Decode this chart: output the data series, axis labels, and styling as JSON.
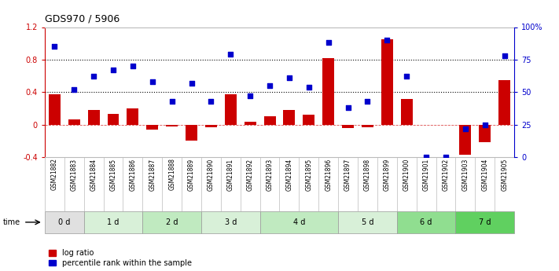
{
  "title": "GDS970 / 5906",
  "samples": [
    "GSM21882",
    "GSM21883",
    "GSM21884",
    "GSM21885",
    "GSM21886",
    "GSM21887",
    "GSM21888",
    "GSM21889",
    "GSM21890",
    "GSM21891",
    "GSM21892",
    "GSM21893",
    "GSM21894",
    "GSM21895",
    "GSM21896",
    "GSM21897",
    "GSM21898",
    "GSM21899",
    "GSM21900",
    "GSM21901",
    "GSM21902",
    "GSM21903",
    "GSM21904",
    "GSM21905"
  ],
  "log_ratio": [
    0.37,
    0.06,
    0.18,
    0.13,
    0.2,
    -0.06,
    -0.02,
    -0.2,
    -0.03,
    0.37,
    0.04,
    0.1,
    0.18,
    0.12,
    0.82,
    -0.04,
    -0.03,
    1.05,
    0.32,
    0.0,
    0.0,
    -0.37,
    -0.22,
    0.55
  ],
  "percentile_rank": [
    0.85,
    0.52,
    0.62,
    0.67,
    0.7,
    0.58,
    0.43,
    0.57,
    0.43,
    0.79,
    0.47,
    0.55,
    0.61,
    0.54,
    0.88,
    0.38,
    0.43,
    0.9,
    0.62,
    0.0,
    0.0,
    0.22,
    0.25,
    0.78
  ],
  "time_groups": [
    {
      "label": "0 d",
      "start": 0,
      "end": 2,
      "color": "#e0e0e0"
    },
    {
      "label": "1 d",
      "start": 2,
      "end": 5,
      "color": "#d8f0d8"
    },
    {
      "label": "2 d",
      "start": 5,
      "end": 8,
      "color": "#c0eac0"
    },
    {
      "label": "3 d",
      "start": 8,
      "end": 11,
      "color": "#d8f0d8"
    },
    {
      "label": "4 d",
      "start": 11,
      "end": 15,
      "color": "#c0eac0"
    },
    {
      "label": "5 d",
      "start": 15,
      "end": 18,
      "color": "#d8f0d8"
    },
    {
      "label": "6 d",
      "start": 18,
      "end": 21,
      "color": "#90de90"
    },
    {
      "label": "7 d",
      "start": 21,
      "end": 24,
      "color": "#60d060"
    }
  ],
  "bar_color": "#cc0000",
  "dot_color": "#0000cc",
  "ylim_left": [
    -0.4,
    1.2
  ],
  "ylim_right": [
    0,
    100
  ],
  "hlines": [
    0.4,
    0.8
  ],
  "bg_color": "#ffffff",
  "ax_bg_color": "#ffffff"
}
